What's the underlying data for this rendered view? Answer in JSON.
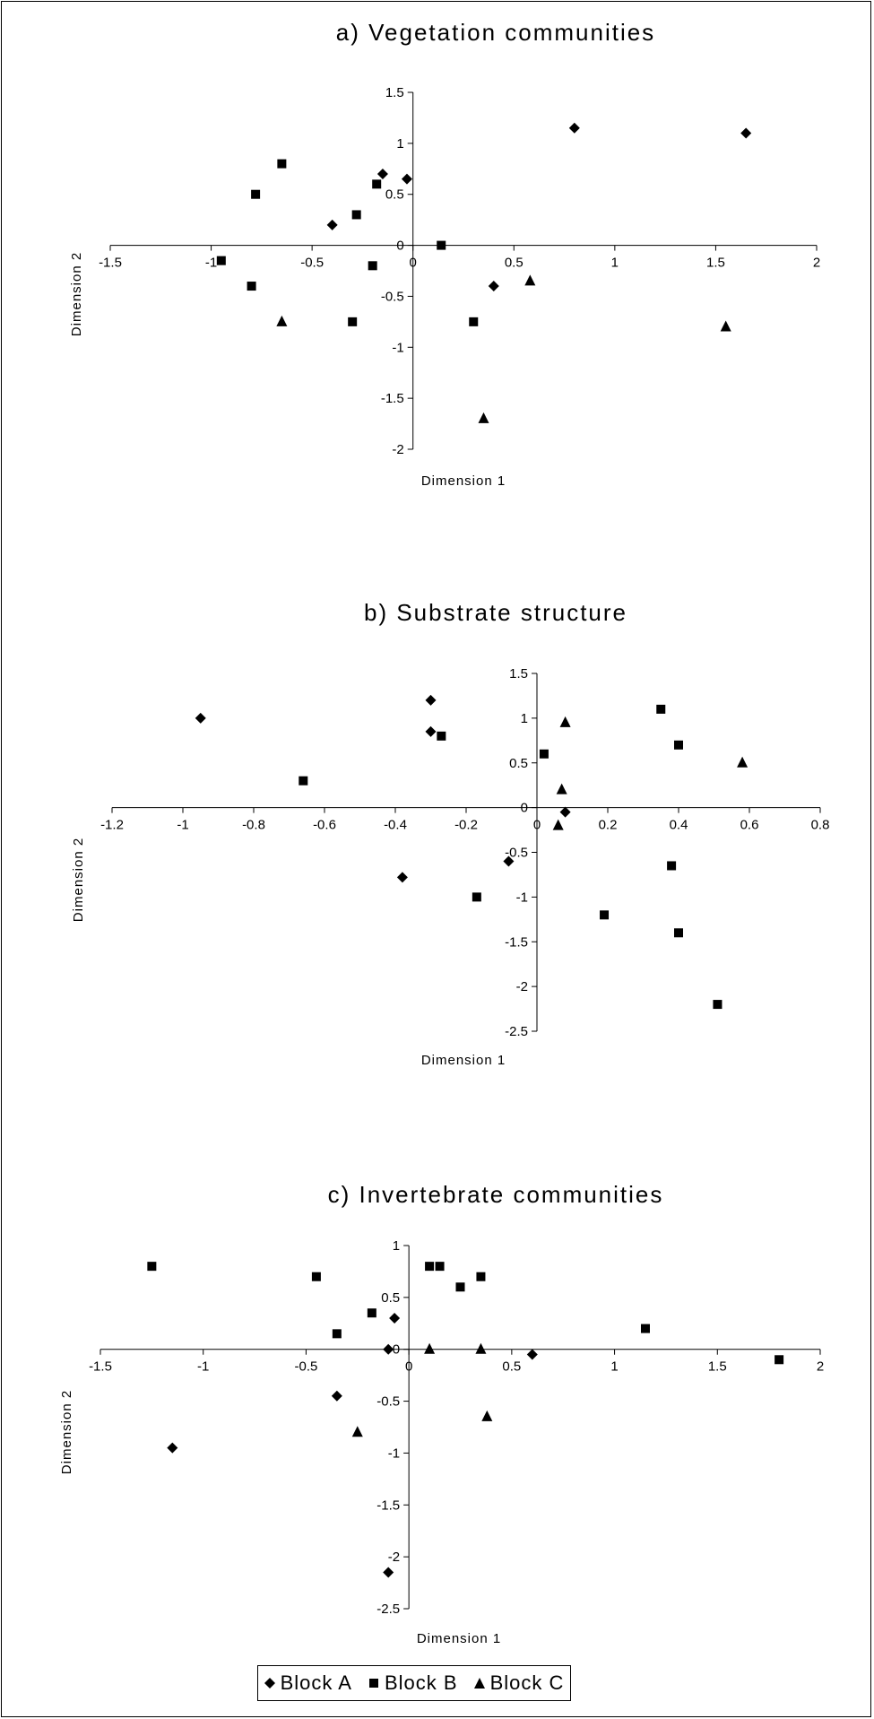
{
  "chart_data": [
    {
      "type": "scatter",
      "title": "a) Vegetation communities",
      "xlabel": "Dimension 1",
      "ylabel": "Dimension 2",
      "xlim": [
        -1.5,
        2
      ],
      "ylim": [
        -2,
        1.5
      ],
      "xticks": [
        -1.5,
        -1,
        -0.5,
        0,
        0.5,
        1,
        1.5,
        2
      ],
      "yticks": [
        -2,
        -1.5,
        -1,
        -0.5,
        0,
        0.5,
        1,
        1.5
      ],
      "series": [
        {
          "name": "Block A",
          "marker": "diamond",
          "points": [
            [
              -0.15,
              0.7
            ],
            [
              -0.03,
              0.65
            ],
            [
              -0.4,
              0.2
            ],
            [
              0.8,
              1.15
            ],
            [
              1.65,
              1.1
            ],
            [
              0.4,
              -0.4
            ]
          ]
        },
        {
          "name": "Block B",
          "marker": "square",
          "points": [
            [
              -0.65,
              0.8
            ],
            [
              -0.78,
              0.5
            ],
            [
              -0.18,
              0.6
            ],
            [
              -0.28,
              0.3
            ],
            [
              0.14,
              0
            ],
            [
              -0.95,
              -0.15
            ],
            [
              -0.8,
              -0.4
            ],
            [
              -0.2,
              -0.2
            ],
            [
              -0.3,
              -0.75
            ],
            [
              0.3,
              -0.75
            ]
          ]
        },
        {
          "name": "Block C",
          "marker": "triangle",
          "points": [
            [
              -0.65,
              -0.75
            ],
            [
              0.58,
              -0.35
            ],
            [
              1.55,
              -0.8
            ],
            [
              0.35,
              -1.7
            ]
          ]
        }
      ]
    },
    {
      "type": "scatter",
      "title": "b) Substrate structure",
      "xlabel": "Dimension 1",
      "ylabel": "Dimension 2",
      "xlim": [
        -1.2,
        0.8
      ],
      "ylim": [
        -2.5,
        1.5
      ],
      "xticks": [
        -1.2,
        -1,
        -0.8,
        -0.6,
        -0.4,
        -0.2,
        0,
        0.2,
        0.4,
        0.6,
        0.8
      ],
      "yticks": [
        -2.5,
        -2,
        -1.5,
        -1,
        -0.5,
        0,
        0.5,
        1,
        1.5
      ],
      "series": [
        {
          "name": "Block A",
          "marker": "diamond",
          "points": [
            [
              -0.95,
              1.0
            ],
            [
              -0.3,
              1.2
            ],
            [
              -0.3,
              0.85
            ],
            [
              0.08,
              -0.05
            ],
            [
              -0.38,
              -0.78
            ],
            [
              -0.08,
              -0.6
            ]
          ]
        },
        {
          "name": "Block B",
          "marker": "square",
          "points": [
            [
              -0.27,
              0.8
            ],
            [
              -0.66,
              0.3
            ],
            [
              0.02,
              0.6
            ],
            [
              0.35,
              1.1
            ],
            [
              0.4,
              0.7
            ],
            [
              0.38,
              -0.65
            ],
            [
              -0.17,
              -1.0
            ],
            [
              0.19,
              -1.2
            ],
            [
              0.4,
              -1.4
            ],
            [
              0.51,
              -2.2
            ]
          ]
        },
        {
          "name": "Block C",
          "marker": "triangle",
          "points": [
            [
              0.08,
              0.95
            ],
            [
              0.58,
              0.5
            ],
            [
              0.07,
              0.2
            ],
            [
              0.06,
              -0.2
            ]
          ]
        }
      ]
    },
    {
      "type": "scatter",
      "title": "c) Invertebrate communities",
      "xlabel": "Dimension 1",
      "ylabel": "Dimension 2",
      "xlim": [
        -1.5,
        2
      ],
      "ylim": [
        -2.5,
        1
      ],
      "xticks": [
        -1.5,
        -1,
        -0.5,
        0,
        0.5,
        1,
        1.5,
        2
      ],
      "yticks": [
        -2.5,
        -2,
        -1.5,
        -1,
        -0.5,
        0,
        0.5,
        1
      ],
      "series": [
        {
          "name": "Block A",
          "marker": "diamond",
          "points": [
            [
              -0.07,
              0.3
            ],
            [
              -0.1,
              0
            ],
            [
              -0.35,
              -0.45
            ],
            [
              -1.15,
              -0.95
            ],
            [
              0.6,
              -0.05
            ],
            [
              -0.1,
              -2.15
            ]
          ]
        },
        {
          "name": "Block B",
          "marker": "square",
          "points": [
            [
              -1.25,
              0.8
            ],
            [
              -0.45,
              0.7
            ],
            [
              0.1,
              0.8
            ],
            [
              0.15,
              0.8
            ],
            [
              0.35,
              0.7
            ],
            [
              0.25,
              0.6
            ],
            [
              -0.18,
              0.35
            ],
            [
              -0.35,
              0.15
            ],
            [
              1.15,
              0.2
            ],
            [
              1.8,
              -0.1
            ]
          ]
        },
        {
          "name": "Block C",
          "marker": "triangle",
          "points": [
            [
              0.1,
              0
            ],
            [
              0.35,
              0
            ],
            [
              -0.25,
              -0.8
            ],
            [
              0.38,
              -0.65
            ]
          ]
        }
      ]
    }
  ],
  "legend": {
    "items": [
      {
        "label": "Block A",
        "marker": "diamond"
      },
      {
        "label": "Block B",
        "marker": "square"
      },
      {
        "label": "Block C",
        "marker": "triangle"
      }
    ]
  }
}
